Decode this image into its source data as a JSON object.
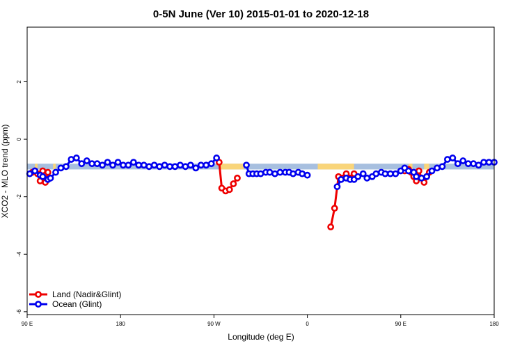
{
  "chart_data": {
    "type": "line",
    "title": "0-5N June (Ver 10)   2015-01-01 to 2020-12-18",
    "xlabel": "Longitude (deg E)",
    "ylabel": "XCO2 - MLO trend (ppm)",
    "xlim": [
      90,
      450
    ],
    "ylim": [
      -6.1,
      3.9
    ],
    "x_ticks": [
      {
        "value": 90,
        "label": "90 E"
      },
      {
        "value": 162,
        "label": "180"
      },
      {
        "value": 234,
        "label": "90 W"
      },
      {
        "value": 306,
        "label": "0"
      },
      {
        "value": 378,
        "label": "90 E"
      },
      {
        "value": 450,
        "label": "180"
      }
    ],
    "y_ticks": [
      {
        "value": 2,
        "label": "2"
      },
      {
        "value": 0,
        "label": "0"
      },
      {
        "value": -2,
        "label": "-2"
      },
      {
        "value": -4,
        "label": "-4"
      },
      {
        "value": -6,
        "label": "-6"
      }
    ],
    "band": {
      "lower": -1.05,
      "upper": -0.85,
      "color": "#a7bfdf"
    },
    "land_band": {
      "color": "#f9d57a",
      "segments": [
        [
          96,
          98
        ],
        [
          110,
          112
        ],
        [
          238,
          257
        ],
        [
          314,
          342
        ],
        [
          384,
          387
        ],
        [
          396,
          400
        ]
      ]
    },
    "legend": {
      "position": "bottom-left"
    },
    "series": [
      {
        "name": "Land (Nadir&Glint)",
        "color": "#ee0000",
        "segments": [
          {
            "x": [
              94,
              96,
              98,
              100,
              102,
              104,
              106
            ],
            "y": [
              -1.15,
              -1.1,
              -1.2,
              -1.45,
              -1.1,
              -1.5,
              -1.15
            ]
          },
          {
            "x": [
              238,
              240,
              243,
              246,
              249,
              252
            ],
            "y": [
              -0.8,
              -1.7,
              -1.8,
              -1.75,
              -1.55,
              -1.35
            ]
          },
          {
            "x": [
              324,
              327,
              330,
              333,
              336,
              339,
              342
            ],
            "y": [
              -3.05,
              -2.4,
              -1.3,
              -1.35,
              -1.2,
              -1.35,
              -1.2
            ]
          },
          {
            "x": [
              381,
              384,
              386,
              388,
              390,
              392,
              394,
              396,
              398,
              400
            ],
            "y": [
              -1.1,
              -1.05,
              -1.15,
              -1.3,
              -1.45,
              -1.1,
              -1.35,
              -1.5,
              -1.3,
              -1.15
            ]
          }
        ]
      },
      {
        "name": "Ocean (Glint)",
        "color": "#0000ee",
        "segments": [
          {
            "x": [
              92,
              96,
              100,
              102,
              106,
              108,
              112,
              116,
              120,
              124,
              128,
              132,
              136,
              140,
              144,
              148,
              152,
              156,
              160,
              164,
              168,
              172,
              176,
              180,
              184,
              188,
              192,
              196,
              200,
              204,
              208,
              212,
              216,
              220,
              224,
              228,
              232,
              236
            ],
            "y": [
              -1.2,
              -1.1,
              -1.25,
              -1.3,
              -1.4,
              -1.35,
              -1.15,
              -1.0,
              -0.95,
              -0.7,
              -0.65,
              -0.85,
              -0.75,
              -0.85,
              -0.85,
              -0.9,
              -0.8,
              -0.9,
              -0.8,
              -0.9,
              -0.9,
              -0.8,
              -0.9,
              -0.9,
              -0.95,
              -0.9,
              -0.95,
              -0.9,
              -0.95,
              -0.95,
              -0.9,
              -0.95,
              -0.9,
              -1.0,
              -0.9,
              -0.9,
              -0.85,
              -0.65
            ]
          },
          {
            "x": [
              259,
              261,
              264,
              267,
              270,
              274,
              277,
              281,
              285,
              289,
              292,
              295,
              299,
              302,
              306
            ],
            "y": [
              -0.9,
              -1.2,
              -1.2,
              -1.2,
              -1.2,
              -1.15,
              -1.15,
              -1.2,
              -1.15,
              -1.15,
              -1.15,
              -1.2,
              -1.15,
              -1.2,
              -1.25
            ]
          },
          {
            "x": [
              329,
              332,
              336,
              339,
              342,
              345,
              349,
              352,
              356,
              359,
              363,
              366,
              370,
              374,
              378,
              381,
              384,
              388,
              390,
              394,
              398,
              402,
              406,
              410,
              414,
              418,
              422,
              426,
              430,
              434,
              438,
              442,
              446,
              450
            ],
            "y": [
              -1.65,
              -1.4,
              -1.35,
              -1.4,
              -1.4,
              -1.3,
              -1.2,
              -1.35,
              -1.3,
              -1.2,
              -1.15,
              -1.2,
              -1.2,
              -1.2,
              -1.1,
              -1.0,
              -1.1,
              -1.15,
              -1.3,
              -1.35,
              -1.3,
              -1.1,
              -1.0,
              -0.95,
              -0.7,
              -0.65,
              -0.85,
              -0.75,
              -0.85,
              -0.85,
              -0.9,
              -0.8,
              -0.8,
              -0.8
            ]
          }
        ]
      }
    ]
  }
}
